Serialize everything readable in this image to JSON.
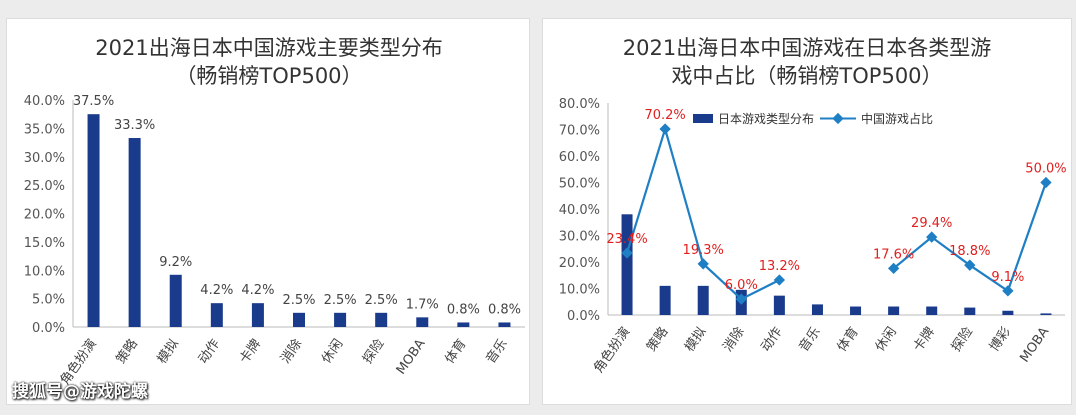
{
  "colors": {
    "bar": "#1a3a8c",
    "line": "#1f7fc4",
    "point": "#1f7fc4",
    "line_labels": "#e02020"
  },
  "watermark": "搜狐号@游戏陀螺",
  "chart_data": [
    {
      "type": "bar",
      "title_lines": [
        "2021出海日本中国游戏主要类型分布",
        "（畅销榜TOP500）"
      ],
      "categories": [
        "角色扮演",
        "策略",
        "模拟",
        "动作",
        "卡牌",
        "消除",
        "休闲",
        "探险",
        "MOBA",
        "体育",
        "音乐"
      ],
      "values": [
        37.5,
        33.3,
        9.2,
        4.2,
        4.2,
        2.5,
        2.5,
        2.5,
        1.7,
        0.8,
        0.8
      ],
      "value_labels": [
        "37.5%",
        "33.3%",
        "9.2%",
        "4.2%",
        "4.2%",
        "2.5%",
        "2.5%",
        "2.5%",
        "1.7%",
        "0.8%",
        "0.8%"
      ],
      "y_ticks": [
        "0.0%",
        "5.0%",
        "10.0%",
        "15.0%",
        "20.0%",
        "25.0%",
        "30.0%",
        "35.0%",
        "40.0%"
      ],
      "ylim": [
        0,
        40
      ],
      "grid": false
    },
    {
      "type": "bar+line",
      "title_lines": [
        "2021出海日本中国游戏在日本各类型游",
        "戏中占比（畅销榜TOP500）"
      ],
      "categories": [
        "角色扮演",
        "策略",
        "模拟",
        "消除",
        "动作",
        "音乐",
        "体育",
        "休闲",
        "卡牌",
        "探险",
        "博彩",
        "MOBA"
      ],
      "legend": [
        "日本游戏类型分布",
        "中国游戏占比"
      ],
      "legend_position": "top",
      "series": [
        {
          "name": "日本游戏类型分布",
          "kind": "bar",
          "values": [
            38.0,
            11.0,
            11.0,
            9.5,
            7.3,
            4.0,
            3.2,
            3.2,
            3.2,
            2.8,
            1.6,
            0.6
          ]
        },
        {
          "name": "中国游戏占比",
          "kind": "line",
          "values": [
            23.4,
            70.2,
            19.3,
            6.0,
            13.2,
            null,
            null,
            17.6,
            29.4,
            18.8,
            9.1,
            50.0
          ],
          "value_labels": [
            "23.4%",
            "70.2%",
            "19.3%",
            "6.0%",
            "13.2%",
            null,
            null,
            "17.6%",
            "29.4%",
            "18.8%",
            "9.1%",
            "50.0%"
          ]
        }
      ],
      "y_ticks": [
        "0.0%",
        "10.0%",
        "20.0%",
        "30.0%",
        "40.0%",
        "50.0%",
        "60.0%",
        "70.0%",
        "80.0%"
      ],
      "ylim": [
        0,
        80
      ],
      "grid": false
    }
  ]
}
